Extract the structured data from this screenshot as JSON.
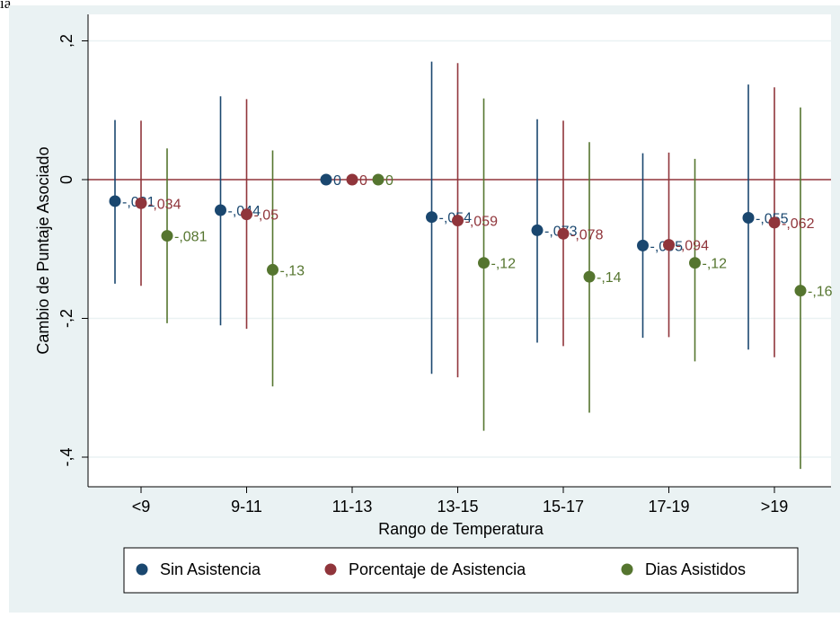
{
  "corner_text": "ia",
  "chart_data": {
    "type": "scatter",
    "subtype": "coefficient plot with confidence intervals",
    "xlabel": "Rango de Temperatura",
    "ylabel": "Cambio de Puntaje Asociado",
    "categories": [
      "<9",
      "9-11",
      "11-13",
      "13-15",
      "15-17",
      "17-19",
      ">19"
    ],
    "yticks": [
      0.2,
      0,
      -0.2,
      -0.4
    ],
    "ytick_labels": [
      ",2",
      "0",
      "-,2",
      "-,4"
    ],
    "ylim": [
      -0.45,
      0.2
    ],
    "reference_line": 0,
    "grid": true,
    "legend_position": "bottom",
    "series": [
      {
        "name": "Sin Asistencia",
        "color": "#1a476f",
        "values": [
          -0.031,
          -0.044,
          0,
          -0.054,
          -0.073,
          -0.095,
          -0.055
        ],
        "labels": [
          "-,031",
          "-,044",
          "0",
          "-,054",
          "-,073",
          "-,095",
          "-,055"
        ],
        "ci_low": [
          -0.15,
          -0.21,
          0,
          -0.28,
          -0.235,
          -0.228,
          -0.245
        ],
        "ci_high": [
          0.086,
          0.12,
          0,
          0.17,
          0.087,
          0.038,
          0.137
        ]
      },
      {
        "name": "Porcentaje de Asistencia",
        "color": "#90353b",
        "values": [
          -0.034,
          -0.05,
          0,
          -0.059,
          -0.078,
          -0.094,
          -0.062
        ],
        "labels": [
          "-,034",
          "-,05",
          "0",
          "-,059",
          "-,078",
          "-,094",
          "-,062"
        ],
        "ci_low": [
          -0.153,
          -0.215,
          0,
          -0.285,
          -0.24,
          -0.227,
          -0.256
        ],
        "ci_high": [
          0.085,
          0.116,
          0,
          0.168,
          0.085,
          0.039,
          0.133
        ]
      },
      {
        "name": "Dias Asistidos",
        "color": "#55752f",
        "values": [
          -0.081,
          -0.13,
          0,
          -0.12,
          -0.14,
          -0.12,
          -0.16
        ],
        "labels": [
          "-,081",
          "-,13",
          "0",
          "-,12",
          "-,14",
          "-,12",
          "-,16"
        ],
        "ci_low": [
          -0.207,
          -0.298,
          0,
          -0.362,
          -0.336,
          -0.262,
          -0.417
        ],
        "ci_high": [
          0.045,
          0.042,
          0,
          0.117,
          0.054,
          0.03,
          0.104
        ]
      }
    ]
  }
}
